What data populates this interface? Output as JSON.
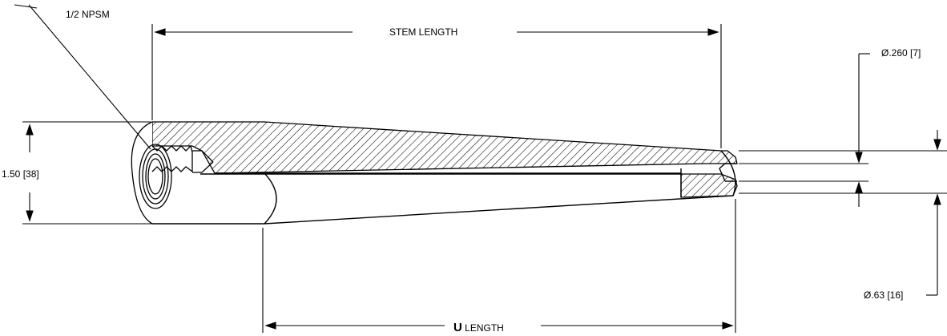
{
  "labels": {
    "thread": "1/2 NPSM",
    "stem_length": "STEM LENGTH",
    "bore_dia": "Ø.260 [7]",
    "od": "1.50 [38]",
    "tip_dia": "Ø.63 [16]",
    "u_prefix": "U",
    "u_suffix": " LENGTH"
  },
  "colors": {
    "ink": "#000000",
    "background": "#ffffff"
  }
}
